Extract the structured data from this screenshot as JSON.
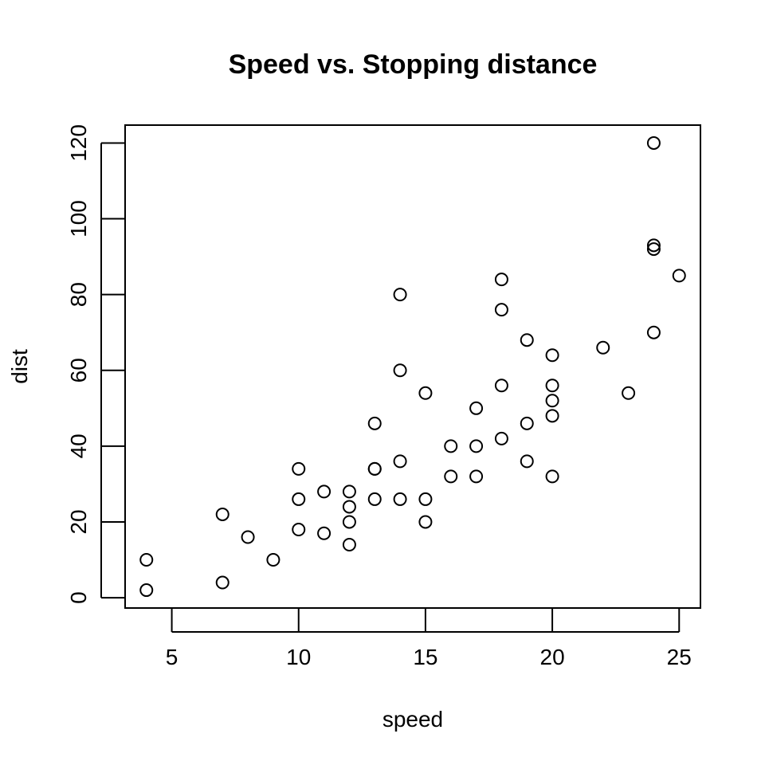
{
  "chart_data": {
    "type": "scatter",
    "title": "Speed vs. Stopping distance",
    "xlabel": "speed",
    "ylabel": "dist",
    "xlim": [
      3.16,
      25.84
    ],
    "ylim": [
      -2.72,
      124.72
    ],
    "xticks": [
      5,
      10,
      15,
      20,
      25
    ],
    "yticks": [
      0,
      20,
      40,
      60,
      80,
      100,
      120
    ],
    "grid": false,
    "marker": "open-circle",
    "points": [
      [
        4,
        2
      ],
      [
        4,
        10
      ],
      [
        7,
        4
      ],
      [
        7,
        22
      ],
      [
        8,
        16
      ],
      [
        9,
        10
      ],
      [
        10,
        18
      ],
      [
        10,
        26
      ],
      [
        10,
        34
      ],
      [
        11,
        17
      ],
      [
        11,
        28
      ],
      [
        12,
        14
      ],
      [
        12,
        20
      ],
      [
        12,
        24
      ],
      [
        12,
        28
      ],
      [
        13,
        26
      ],
      [
        13,
        34
      ],
      [
        13,
        34
      ],
      [
        13,
        46
      ],
      [
        14,
        26
      ],
      [
        14,
        36
      ],
      [
        14,
        60
      ],
      [
        14,
        80
      ],
      [
        15,
        20
      ],
      [
        15,
        26
      ],
      [
        15,
        54
      ],
      [
        16,
        32
      ],
      [
        16,
        40
      ],
      [
        17,
        32
      ],
      [
        17,
        40
      ],
      [
        17,
        50
      ],
      [
        18,
        42
      ],
      [
        18,
        56
      ],
      [
        18,
        76
      ],
      [
        18,
        84
      ],
      [
        19,
        36
      ],
      [
        19,
        46
      ],
      [
        19,
        68
      ],
      [
        20,
        32
      ],
      [
        20,
        48
      ],
      [
        20,
        52
      ],
      [
        20,
        56
      ],
      [
        20,
        64
      ],
      [
        22,
        66
      ],
      [
        23,
        54
      ],
      [
        24,
        70
      ],
      [
        24,
        92
      ],
      [
        24,
        93
      ],
      [
        24,
        120
      ],
      [
        25,
        85
      ]
    ]
  }
}
